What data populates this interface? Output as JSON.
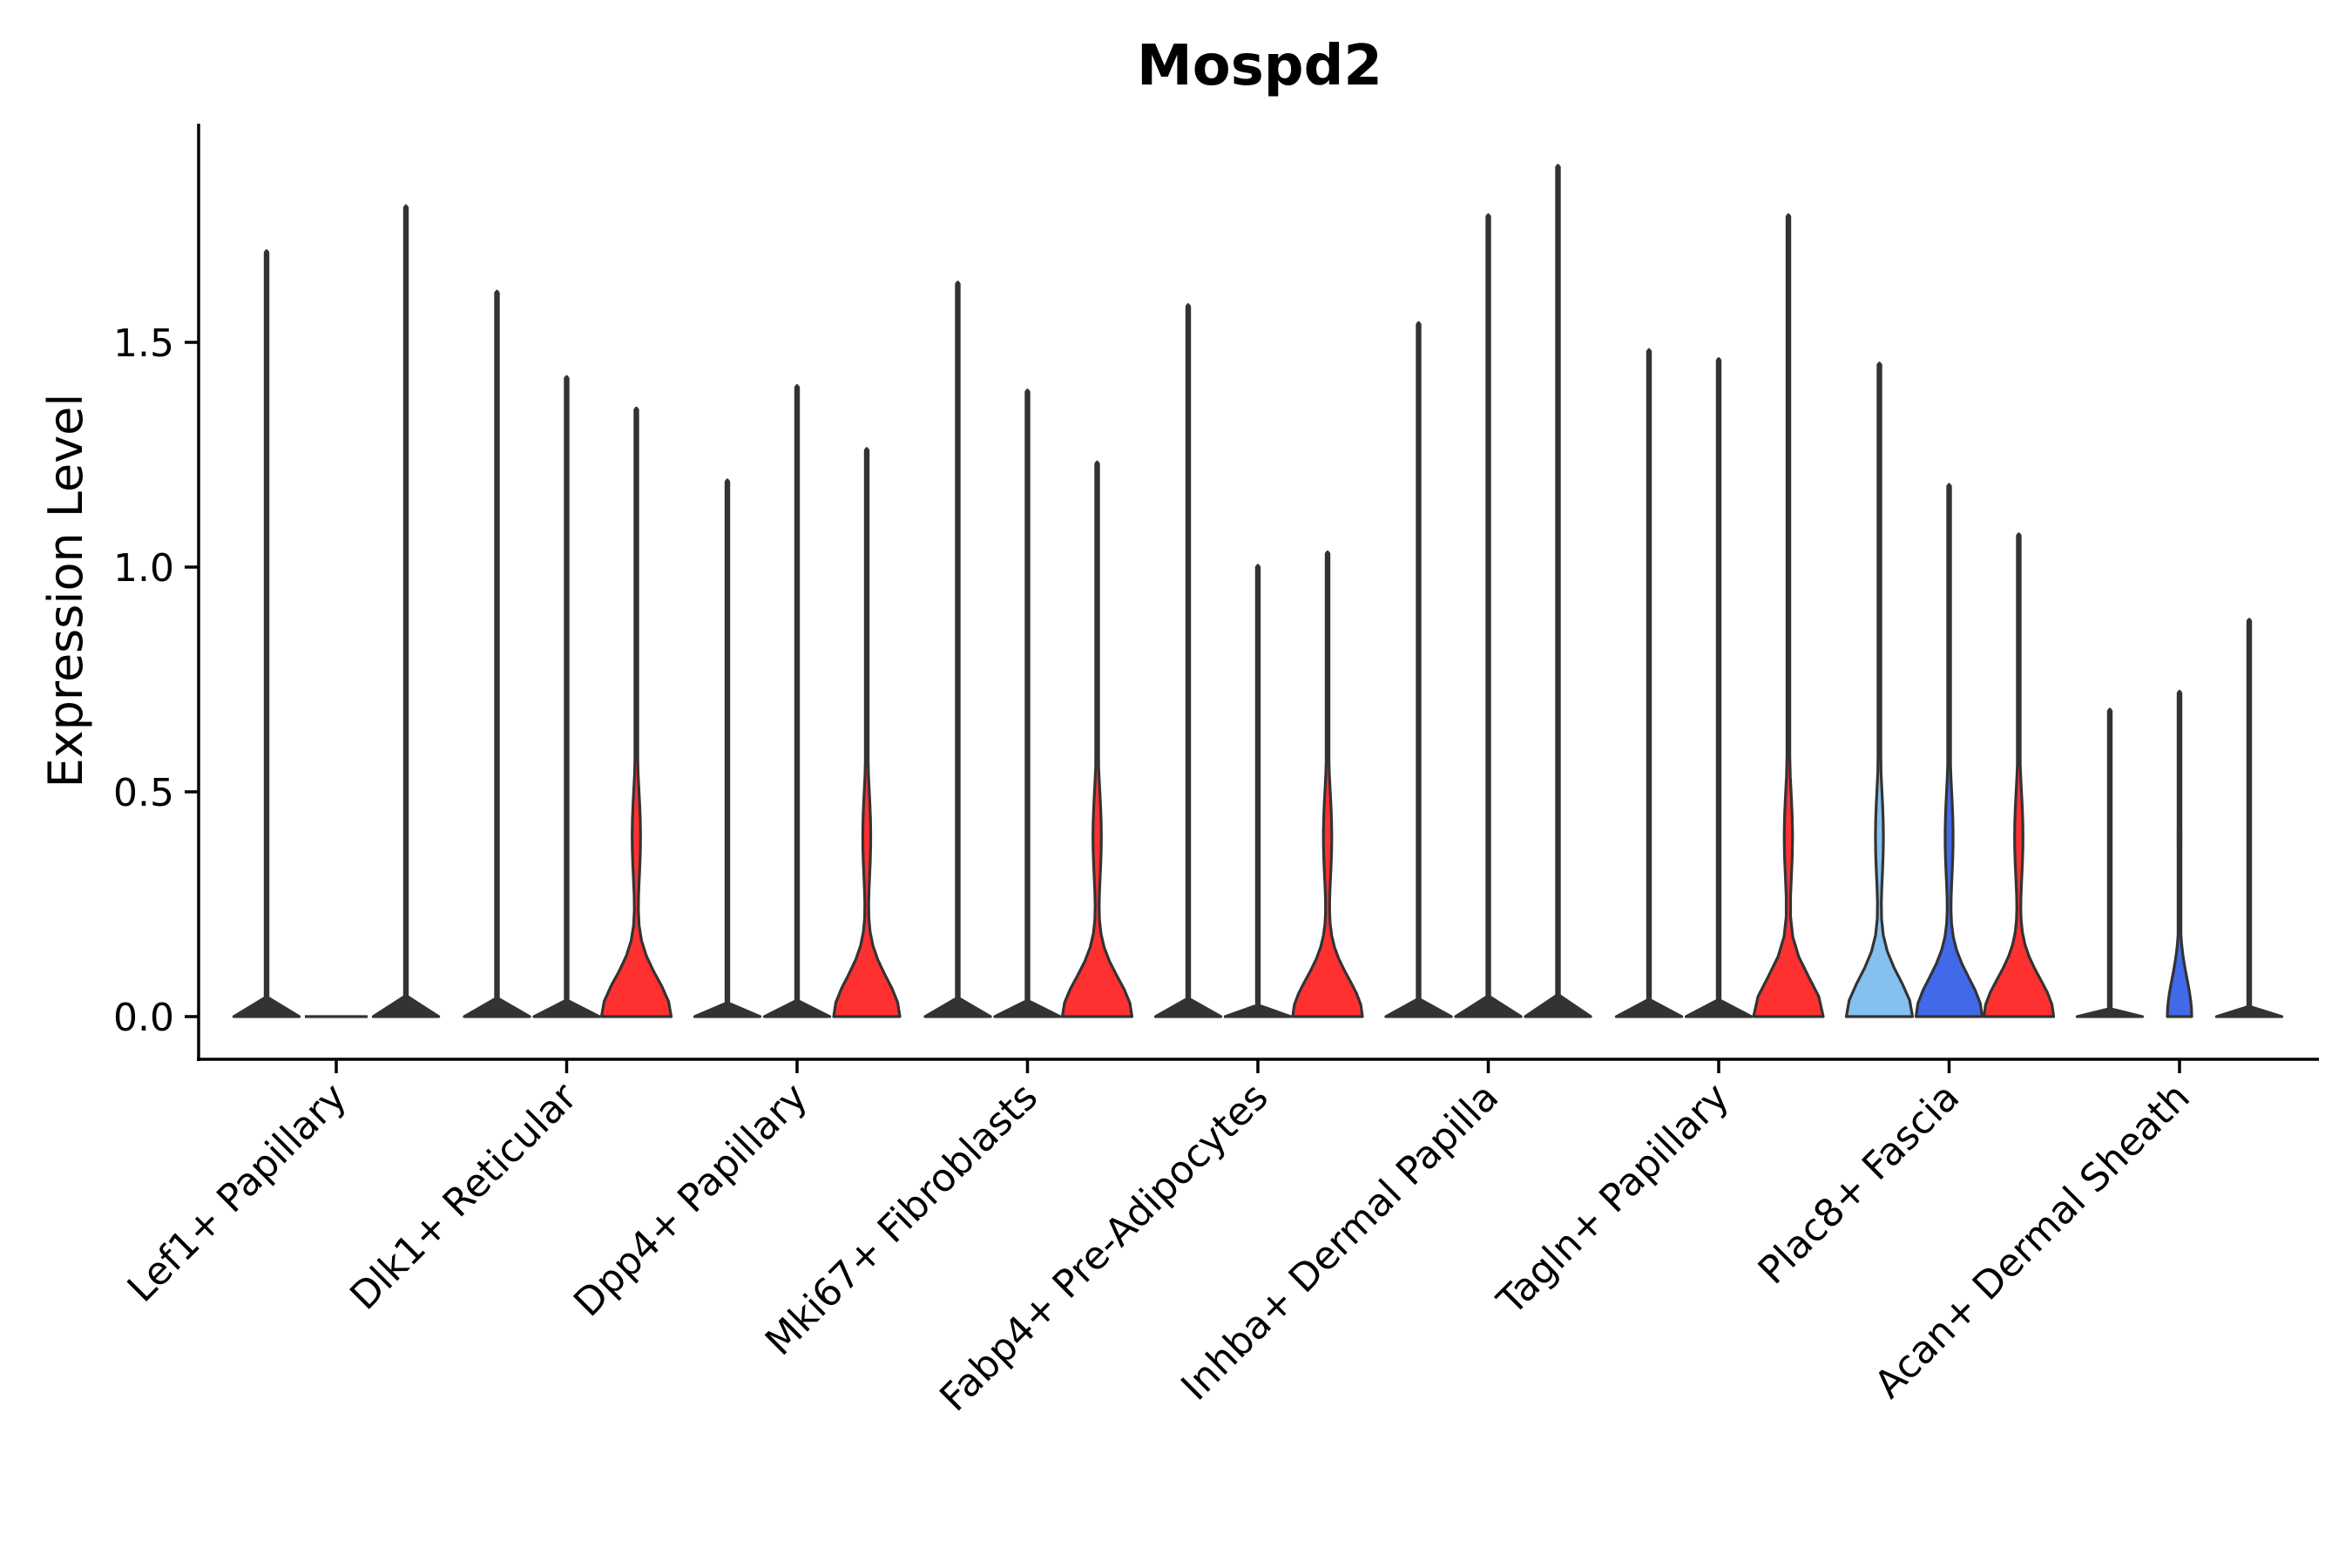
{
  "chart_data": {
    "type": "violin",
    "title": "Mospd2",
    "xlabel": "",
    "ylabel": "Expression Level",
    "ylim": [
      -0.1,
      2.0
    ],
    "yticks": [
      "0.0",
      "0.5",
      "1.0",
      "1.5"
    ],
    "grid": false,
    "legend": "none",
    "colors": {
      "group1": "#85C1EE",
      "group2": "#4169E8",
      "group3": "#FF3030",
      "outline": "#333333"
    },
    "categories": [
      "Lef1+ Papillary",
      "Dlk1+ Reticular",
      "Dpp4+ Papillary",
      "Mki67+ Fibroblasts",
      "Fabp4+ Pre-Adipocytes",
      "Inhba+ Dermal Papilla",
      "Tagln+ Papillary",
      "Plac8+ Fascia",
      "Acan+ Dermal Sheath"
    ],
    "series": [
      {
        "name": "group1",
        "color": "#85C1EE",
        "max_values": [
          1.7,
          1.61,
          1.19,
          1.63,
          1.58,
          1.54,
          1.48,
          1.45,
          0.68
        ],
        "base_density": [
          0,
          0,
          0,
          0,
          0,
          0,
          0,
          0.95,
          0
        ]
      },
      {
        "name": "group2",
        "color": "#4169E8",
        "max_values": [
          null,
          1.42,
          1.4,
          1.39,
          1.0,
          1.78,
          1.46,
          1.18,
          0.72
        ],
        "base_density": [
          0,
          0,
          0,
          0,
          0,
          0,
          0,
          0.95,
          0.35
        ]
      },
      {
        "name": "group3",
        "color": "#FF3030",
        "max_values": [
          1.8,
          1.35,
          1.26,
          1.23,
          1.03,
          1.89,
          1.78,
          1.07,
          0.88
        ],
        "base_density": [
          0,
          1.0,
          0.95,
          1.0,
          1.0,
          0,
          1.0,
          1.0,
          0
        ]
      }
    ]
  }
}
